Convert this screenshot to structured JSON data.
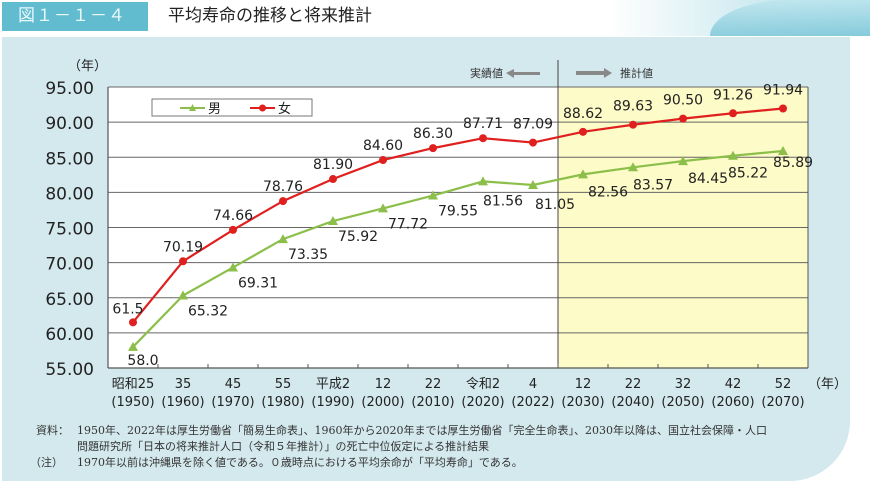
{
  "header": {
    "figure_number": "図１－１－４",
    "title": "平均寿命の推移と将来推計"
  },
  "chart_data": {
    "type": "line",
    "title": "平均寿命の推移と将来推計",
    "ylabel": "（年）",
    "xlabel": "（年）",
    "ylim": [
      55,
      95
    ],
    "yticks": [
      "55.00",
      "60.00",
      "65.00",
      "70.00",
      "75.00",
      "80.00",
      "85.00",
      "90.00",
      "95.00"
    ],
    "grid": true,
    "legend_position": "top-left inside",
    "categories": [
      {
        "era": "昭和25",
        "year": "(1950)"
      },
      {
        "era": "35",
        "year": "(1960)"
      },
      {
        "era": "45",
        "year": "(1970)"
      },
      {
        "era": "55",
        "year": "(1980)"
      },
      {
        "era": "平成2",
        "year": "(1990)"
      },
      {
        "era": "12",
        "year": "(2000)"
      },
      {
        "era": "22",
        "year": "(2010)"
      },
      {
        "era": "令和2",
        "year": "(2020)"
      },
      {
        "era": "4",
        "year": "(2022)"
      },
      {
        "era": "12",
        "year": "(2030)"
      },
      {
        "era": "22",
        "year": "(2040)"
      },
      {
        "era": "32",
        "year": "(2050)"
      },
      {
        "era": "42",
        "year": "(2060)"
      },
      {
        "era": "52",
        "year": "(2070)"
      }
    ],
    "series": [
      {
        "name": "男",
        "color": "#8cbf4a",
        "marker": "triangle",
        "values": [
          58.0,
          65.32,
          69.31,
          73.35,
          75.92,
          77.72,
          79.55,
          81.56,
          81.05,
          82.56,
          83.57,
          84.45,
          85.22,
          85.89
        ],
        "labels": [
          "58.0",
          "65.32",
          "69.31",
          "73.35",
          "75.92",
          "77.72",
          "79.55",
          "81.56",
          "81.05",
          "82.56",
          "83.57",
          "84.45",
          "85.22",
          "85.89"
        ]
      },
      {
        "name": "女",
        "color": "#e01f1f",
        "marker": "circle",
        "values": [
          61.5,
          70.19,
          74.66,
          78.76,
          81.9,
          84.6,
          86.3,
          87.71,
          87.09,
          88.62,
          89.63,
          90.5,
          91.26,
          91.94
        ],
        "labels": [
          "61.5",
          "70.19",
          "74.66",
          "78.76",
          "81.90",
          "84.60",
          "86.30",
          "87.71",
          "87.09",
          "88.62",
          "89.63",
          "90.50",
          "91.26",
          "91.94"
        ]
      }
    ],
    "annotations": {
      "actual_label": "実績値",
      "projection_label": "推計値",
      "projection_start_index": 9,
      "projection_bg": "#fdfbc7"
    }
  },
  "notes": {
    "source_label": "資料：",
    "source_line1": "1950年、2022年は厚生労働省「簡易生命表」、1960年から2020年までは厚生労働省「完全生命表」、2030年以降は、国立社会保障・人口",
    "source_line2": "問題研究所「日本の将来推計人口（令和５年推計）」の死亡中位仮定による推計結果",
    "note_label": "（注）",
    "note_line": "1970年以前は沖縄県を除く値である。０歳時点における平均余命が「平均寿命」である。"
  }
}
